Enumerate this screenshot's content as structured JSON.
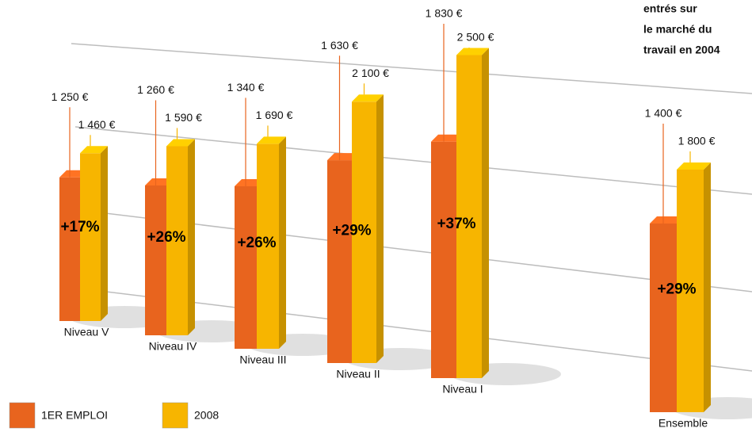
{
  "chart_data": {
    "type": "bar3d",
    "subtitle_lines": [
      "entrés sur",
      "le marché du",
      "travail en 2004"
    ],
    "categories": [
      "Niveau V",
      "Niveau IV",
      "Niveau III",
      "Niveau II",
      "Niveau I",
      "Ensemble"
    ],
    "series": [
      {
        "name": "1ER EMPLOI",
        "color": "#e8641e",
        "values": [
          1250,
          1260,
          1340,
          1630,
          1830,
          1400
        ],
        "value_labels": [
          "1 250 €",
          "1 260 €",
          "1 340 €",
          "1 630 €",
          "1 830 €",
          "1 400 €"
        ]
      },
      {
        "name": "2008",
        "color": "#f7b500",
        "values": [
          1460,
          1590,
          1690,
          2100,
          2500,
          1800
        ],
        "value_labels": [
          "1 460 €",
          "1 590 €",
          "1 690 €",
          "2 100 €",
          "2 500 €",
          "1 800 €"
        ]
      }
    ],
    "annotations": [
      "+17%",
      "+26%",
      "+26%",
      "+29%",
      "+37%",
      "+29%"
    ]
  }
}
